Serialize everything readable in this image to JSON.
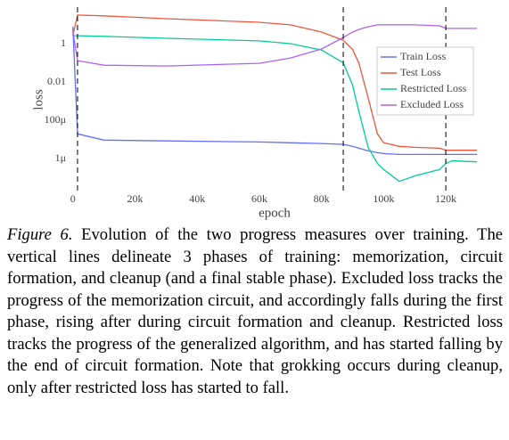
{
  "chart_data": {
    "type": "line",
    "log_y": true,
    "grid": false,
    "legend": "right",
    "xlabel": "epoch",
    "ylabel": "loss",
    "x": [
      0,
      1500,
      10000,
      30000,
      60000,
      70000,
      80000,
      87000,
      90000,
      92000,
      95000,
      98000,
      100000,
      105000,
      110000,
      118000,
      120000,
      122000,
      130000
    ],
    "xlim": [
      -500,
      130000
    ],
    "xticks": [
      0,
      {
        "value": 20000,
        "label": "20k"
      },
      {
        "value": 40000,
        "label": "40k"
      },
      {
        "value": 60000,
        "label": "60k"
      },
      {
        "value": 80000,
        "label": "80k"
      },
      {
        "value": 100000,
        "label": "100k"
      },
      {
        "value": 120000,
        "label": "120k"
      }
    ],
    "ylim": [
      2e-08,
      80
    ],
    "yticks": [
      {
        "value": 1e-06,
        "label": "1μ"
      },
      {
        "value": 0.0001,
        "label": "100μ"
      },
      0.01,
      1
    ],
    "vlines": [
      1500,
      87000,
      120000
    ],
    "series": [
      {
        "name": "Train Loss",
        "color": "#636efa",
        "values": [
          7.7,
          2e-05,
          9.5e-06,
          8.6e-06,
          7.6e-06,
          6.9e-06,
          6.3e-06,
          5.7e-06,
          4.5e-06,
          3.6e-06,
          2.6e-06,
          2.1e-06,
          1.9e-06,
          1.7e-06,
          1.7e-06,
          1.7e-06,
          1.7e-06,
          1.7e-06,
          1.7e-06
        ]
      },
      {
        "name": "Test Loss",
        "color": "#ef553b",
        "values": [
          2.6,
          31,
          28,
          20,
          13,
          9.5,
          4,
          1.5,
          0.5,
          0.1,
          0.0015,
          2e-05,
          7e-06,
          4.5e-06,
          4e-06,
          3.6e-06,
          2.8e-06,
          2.8e-06,
          2.8e-06
        ]
      },
      {
        "name": "Restricted Loss",
        "color": "#00cc96",
        "values": [
          2.6,
          2.6,
          2.4,
          1.9,
          1.4,
          1,
          0.47,
          0.1,
          0.007,
          0.0003,
          4e-06,
          5.8e-07,
          2.8e-07,
          6.7e-08,
          1.3e-07,
          2.8e-07,
          5.8e-07,
          8e-07,
          7e-07
        ]
      },
      {
        "name": "Excluded Loss",
        "color": "#ab63fa",
        "values": [
          4.5,
          0.13,
          0.076,
          0.069,
          0.095,
          0.18,
          0.53,
          2.1,
          4,
          5.5,
          7.6,
          9.5,
          9.5,
          9.5,
          9.5,
          8.5,
          6.2,
          6.2,
          6.2
        ]
      }
    ]
  },
  "caption": {
    "label": "Figure 6.",
    "text": "Evolution of the two progress measures over training. The vertical lines delineate 3 phases of training: memorization, circuit formation, and cleanup (and a final stable phase). Excluded loss tracks the progress of the memorization circuit, and accordingly falls during the first phase, rising after during circuit formation and cleanup. Restricted loss tracks the progress of the generalized algorithm, and has started falling by the end of circuit formation. Note that grokking occurs during cleanup, only after restricted loss has started to fall."
  }
}
